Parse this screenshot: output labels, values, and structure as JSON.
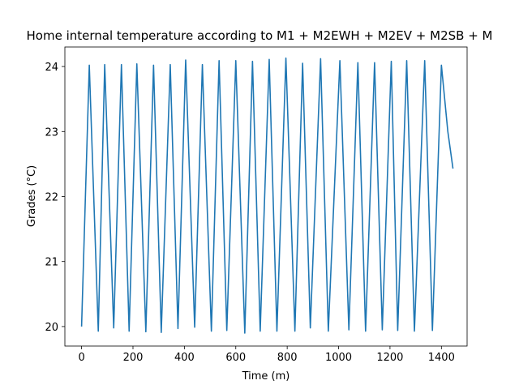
{
  "chart_data": {
    "type": "line",
    "title": "Home internal temperature according to M1 + M2EWH + M2EV + M2SB  + M",
    "xlabel": "Time (m)",
    "ylabel": "Grades (°C)",
    "xlim": [
      -65,
      1500
    ],
    "ylim": [
      19.7,
      24.3
    ],
    "xticks": [
      0,
      200,
      400,
      600,
      800,
      1000,
      1200,
      1400
    ],
    "yticks": [
      20,
      21,
      22,
      23,
      24
    ],
    "grid": false,
    "series": [
      {
        "color": "#1f77b4",
        "x": [
          0,
          30,
          65,
          90,
          125,
          155,
          185,
          215,
          250,
          280,
          310,
          345,
          375,
          405,
          440,
          470,
          505,
          535,
          565,
          600,
          635,
          665,
          695,
          730,
          760,
          795,
          830,
          860,
          890,
          930,
          960,
          1005,
          1040,
          1075,
          1105,
          1140,
          1170,
          1205,
          1230,
          1265,
          1295,
          1335,
          1365,
          1400,
          1425,
          1445
        ],
        "y": [
          20.0,
          24.02,
          19.93,
          24.03,
          19.98,
          24.03,
          19.93,
          24.04,
          19.92,
          24.02,
          19.91,
          24.03,
          19.97,
          24.1,
          19.99,
          24.03,
          19.93,
          24.09,
          19.94,
          24.09,
          19.9,
          24.08,
          19.93,
          24.11,
          19.93,
          24.13,
          19.93,
          24.05,
          19.98,
          24.12,
          19.93,
          24.09,
          19.95,
          24.06,
          19.93,
          24.06,
          19.95,
          24.08,
          19.94,
          24.09,
          19.93,
          24.09,
          19.94,
          24.02,
          23.0,
          22.43
        ]
      }
    ]
  }
}
